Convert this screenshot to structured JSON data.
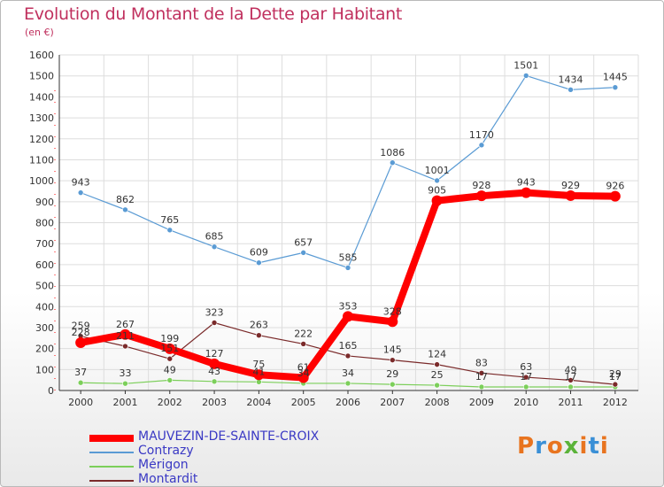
{
  "header": {
    "title": "Evolution du Montant de la Dette par Habitant",
    "subtitle": "(en €)"
  },
  "logo": {
    "text": "Proxiti"
  },
  "chart_data": {
    "type": "line",
    "title": "Evolution du Montant de la Dette par Habitant",
    "subtitle": "(en €)",
    "x": [
      "2000",
      "2001",
      "2002",
      "2003",
      "2004",
      "2005",
      "2006",
      "2007",
      "2008",
      "2009",
      "2010",
      "2011",
      "2012"
    ],
    "ylim": [
      0,
      1600
    ],
    "yticks": [
      0,
      100,
      200,
      300,
      400,
      500,
      600,
      700,
      800,
      900,
      1000,
      1100,
      1200,
      1300,
      1400,
      1500,
      1600
    ],
    "grid": true,
    "legend_position": "bottom-left",
    "series": [
      {
        "name": "MAUVEZIN-DE-SAINTE-CROIX",
        "color": "#ff0000",
        "values": [
          228,
          267,
          199,
          127,
          75,
          61,
          353,
          328,
          905,
          928,
          943,
          929,
          926
        ]
      },
      {
        "name": "Contrazy",
        "color": "#5a9bd4",
        "values": [
          943,
          862,
          765,
          685,
          609,
          657,
          585,
          1086,
          1001,
          1170,
          1501,
          1434,
          1445
        ]
      },
      {
        "name": "Mérigon",
        "color": "#7ccf5a",
        "values": [
          37,
          33,
          49,
          43,
          41,
          34,
          34,
          29,
          25,
          17,
          17,
          17,
          17
        ]
      },
      {
        "name": "Montardit",
        "color": "#7a2a2a",
        "values": [
          259,
          211,
          151,
          323,
          263,
          222,
          165,
          145,
          124,
          83,
          63,
          49,
          29
        ]
      }
    ]
  }
}
